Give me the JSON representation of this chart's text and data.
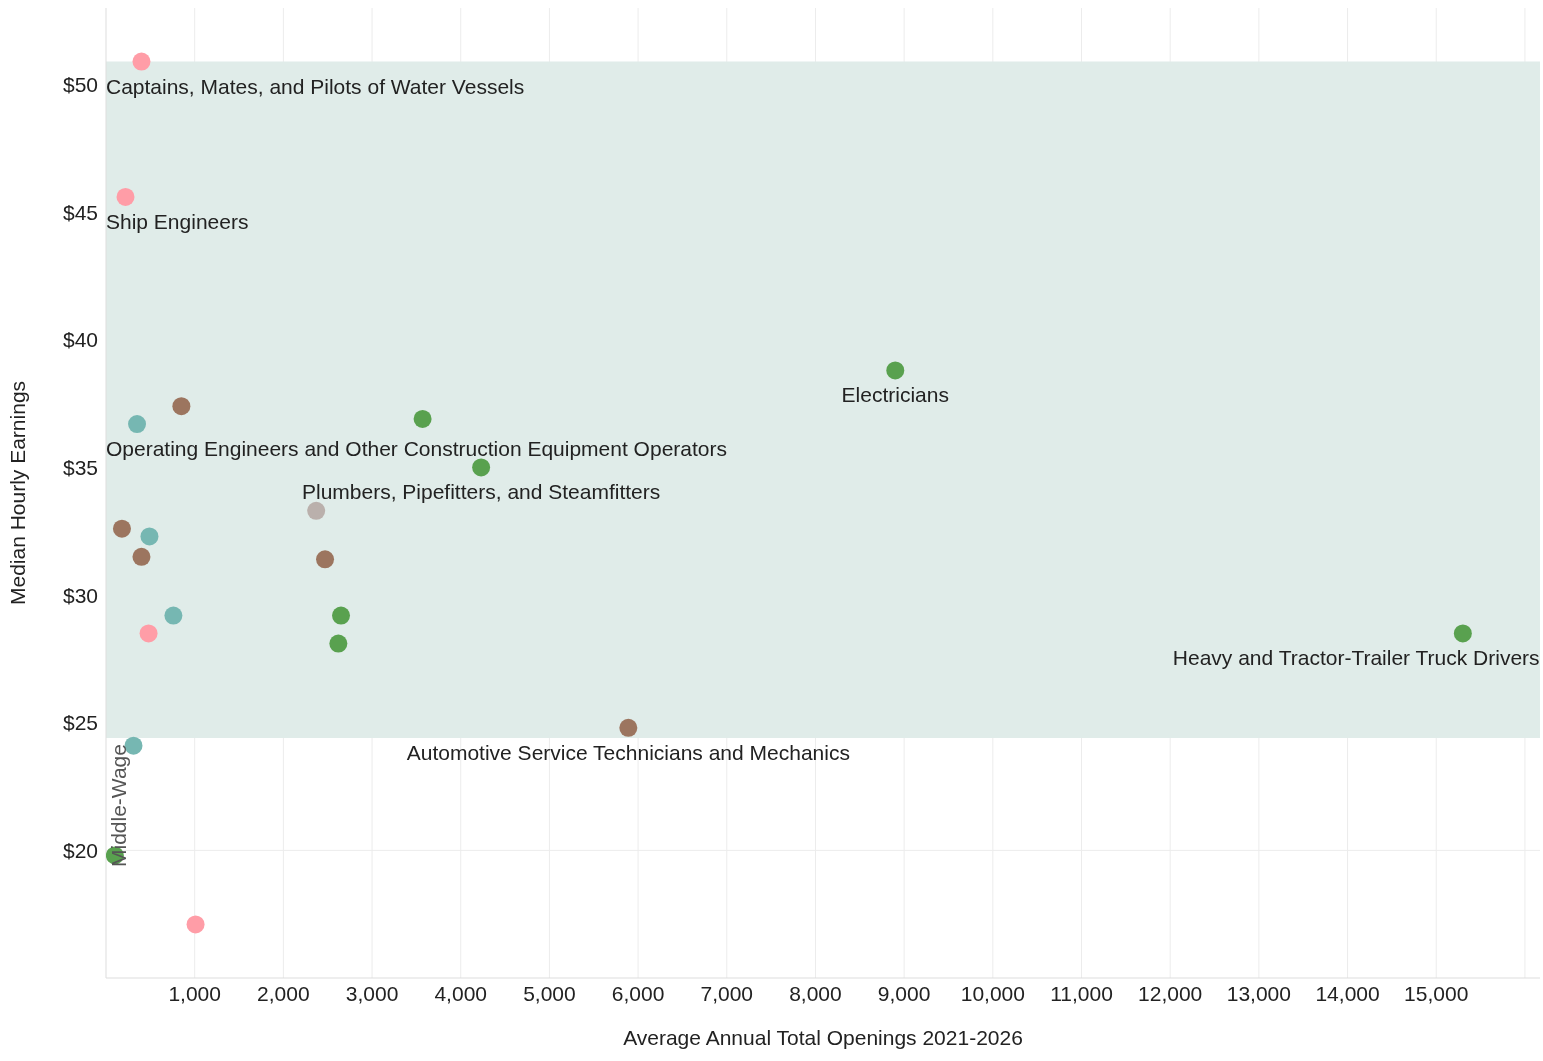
{
  "chart_data": {
    "type": "scatter",
    "xlabel": "Average Annual Total Openings 2021-2026",
    "ylabel": "Median Hourly Earnings",
    "xlim": [
      0,
      16170
    ],
    "ylim": [
      15,
      53
    ],
    "xticks": [
      {
        "value": 1000,
        "label": "1,000"
      },
      {
        "value": 2000,
        "label": "2,000"
      },
      {
        "value": 3000,
        "label": "3,000"
      },
      {
        "value": 4000,
        "label": "4,000"
      },
      {
        "value": 5000,
        "label": "5,000"
      },
      {
        "value": 6000,
        "label": "6,000"
      },
      {
        "value": 7000,
        "label": "7,000"
      },
      {
        "value": 8000,
        "label": "8,000"
      },
      {
        "value": 9000,
        "label": "9,000"
      },
      {
        "value": 10000,
        "label": "10,000"
      },
      {
        "value": 11000,
        "label": "11,000"
      },
      {
        "value": 12000,
        "label": "12,000"
      },
      {
        "value": 13000,
        "label": "13,000"
      },
      {
        "value": 14000,
        "label": "14,000"
      },
      {
        "value": 15000,
        "label": "15,000"
      },
      {
        "value": 16000,
        "label": null
      }
    ],
    "yticks": [
      {
        "value": 20,
        "label": "$20"
      },
      {
        "value": 25,
        "label": "$25"
      },
      {
        "value": 30,
        "label": "$30"
      },
      {
        "value": 35,
        "label": "$35"
      },
      {
        "value": 40,
        "label": "$40"
      },
      {
        "value": 45,
        "label": "$45"
      },
      {
        "value": 50,
        "label": "$50"
      }
    ],
    "grid": true,
    "legend": false,
    "marker": "circle",
    "bands": [
      {
        "axis": "y",
        "from": 24.4,
        "to": 50.9,
        "label": "Middle-Wage",
        "color": "#e0ece9"
      }
    ],
    "series": [
      {
        "color": "#ff9da7",
        "x": [
          400,
          220,
          480,
          1010
        ],
        "values": [
          50.9,
          45.6,
          28.5,
          17.1
        ]
      },
      {
        "color": "#76b7b2",
        "x": [
          350,
          490,
          760,
          310
        ],
        "values": [
          36.7,
          32.3,
          29.2,
          24.1
        ]
      },
      {
        "color": "#9c755f",
        "x": [
          850,
          180,
          400,
          2470,
          5890
        ],
        "values": [
          37.4,
          32.6,
          31.5,
          31.4,
          24.8
        ]
      },
      {
        "color": "#59a14f",
        "x": [
          8900,
          3570,
          4230,
          2650,
          2620,
          15300,
          100
        ],
        "values": [
          38.8,
          36.9,
          35.0,
          29.2,
          28.1,
          28.5,
          19.8
        ]
      },
      {
        "color": "#bab0ac",
        "x": [
          2370
        ],
        "values": [
          33.3
        ]
      }
    ],
    "annotations": [
      {
        "text": "Captains, Mates, and Pilots of Water Vessels",
        "x": 400,
        "y": 50.9
      },
      {
        "text": "Ship Engineers",
        "x": 220,
        "y": 45.6
      },
      {
        "text": "Operating Engineers and Other Construction Equipment Operators",
        "x": 350,
        "y": 36.7
      },
      {
        "text": "Plumbers, Pipefitters, and Steamfitters",
        "x": 4230,
        "y": 35.0
      },
      {
        "text": "Electricians",
        "x": 8900,
        "y": 38.8
      },
      {
        "text": "Heavy and Tractor-Trailer Truck Drivers",
        "x": 15300,
        "y": 28.5
      },
      {
        "text": "Automotive Service Technicians and Mechanics",
        "x": 5890,
        "y": 24.8
      }
    ]
  }
}
